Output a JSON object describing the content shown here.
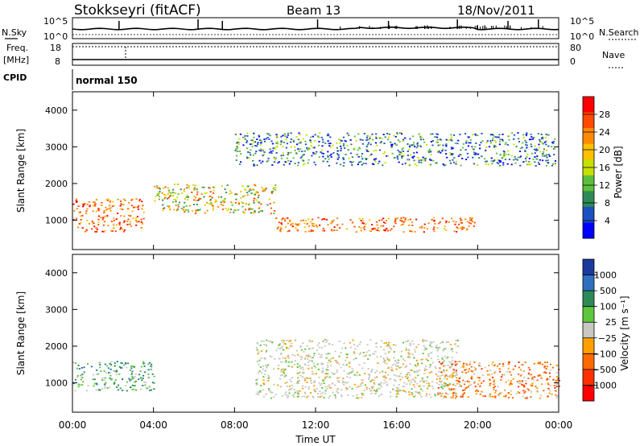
{
  "header": {
    "station": "Stokkseyri (fitACF)",
    "beam": "Beam 13",
    "date": "18/Nov/2011"
  },
  "nsky_panel": {
    "left_label": "N.Sky",
    "right_label": "N.Search",
    "left_ticks": [
      "10^5",
      "10^0"
    ],
    "right_ticks": [
      "10^5",
      "10^0"
    ]
  },
  "freq_panel": {
    "left_label_line1": "Freq.",
    "left_label_line2": "[MHz]",
    "left_ticks": [
      "18",
      "8"
    ],
    "right_ticks": [
      "80",
      "0"
    ],
    "right_label": "Nave"
  },
  "cpid_panel": {
    "label": "CPID",
    "program": "normal 150"
  },
  "chart_data": [
    {
      "type": "heatmap",
      "quantity": "Power",
      "ylabel": "Slant Range [km]",
      "ylim": [
        200,
        4500
      ],
      "yticks": [
        "1000",
        "2000",
        "3000",
        "4000"
      ],
      "xlim_hours": [
        0,
        24
      ],
      "colorbar": {
        "label": "Power [dB]",
        "ticks": [
          "28",
          "24",
          "20",
          "16",
          "12",
          "8",
          "4"
        ],
        "colors": [
          "#ff0000",
          "#ff4a00",
          "#ff8a00",
          "#ffc000",
          "#c8e000",
          "#5cbf3c",
          "#2e8b57",
          "#1a50c0",
          "#0000ff"
        ]
      },
      "bands": [
        {
          "range_km": [
            700,
            1600
          ],
          "hours": [
            0,
            3.5
          ],
          "level": "high"
        },
        {
          "range_km": [
            700,
            1100
          ],
          "hours": [
            10,
            20
          ],
          "level": "high"
        },
        {
          "range_km": [
            1200,
            2000
          ],
          "hours": [
            4,
            10
          ],
          "level": "medium"
        },
        {
          "range_km": [
            2500,
            3400
          ],
          "hours": [
            8,
            23.8
          ],
          "level": "low"
        }
      ]
    },
    {
      "type": "heatmap",
      "quantity": "Velocity",
      "ylabel": "Slant Range [km]",
      "ylim": [
        200,
        4500
      ],
      "yticks": [
        "1000",
        "2000",
        "3000",
        "4000"
      ],
      "xlim_hours": [
        0,
        24
      ],
      "colorbar": {
        "label": "Velocity [m s⁻¹]",
        "ticks": [
          "1000",
          "500",
          "100",
          "25",
          "−25",
          "−100",
          "−500",
          "−1000"
        ],
        "colors": [
          "#1a3aa0",
          "#2e6fbf",
          "#2e8b57",
          "#5cc83c",
          "#c8c8c0",
          "#ffa000",
          "#ff6a00",
          "#ff3000",
          "#ff0000"
        ]
      },
      "bands": [
        {
          "range_km": [
            800,
            1600
          ],
          "hours": [
            0,
            4
          ],
          "level": "positive"
        },
        {
          "range_km": [
            600,
            2200
          ],
          "hours": [
            9,
            19
          ],
          "level": "near-zero"
        },
        {
          "range_km": [
            600,
            1600
          ],
          "hours": [
            18,
            24
          ],
          "level": "negative"
        }
      ]
    }
  ],
  "x_axis": {
    "ticks": [
      "00:00",
      "04:00",
      "08:00",
      "12:00",
      "16:00",
      "20:00",
      "00:00"
    ],
    "label": "Time UT"
  }
}
